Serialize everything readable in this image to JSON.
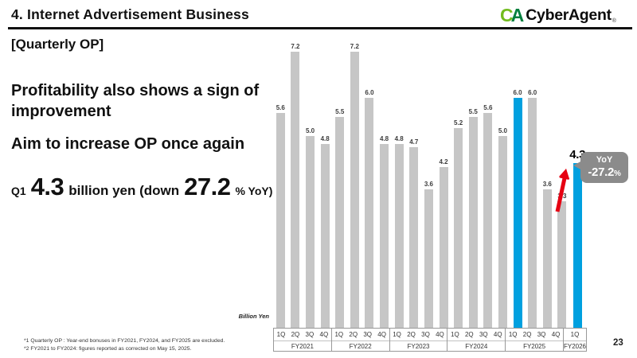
{
  "header": {
    "title": "4.  Internet Advertisement Business",
    "logo": {
      "mark_c": "C",
      "mark_a": "A",
      "name": "CyberAgent",
      "registered": "®"
    }
  },
  "left": {
    "section_label": "[Quarterly OP]",
    "message_line1": "Profitability also shows a sign of improvement",
    "message_line2": "Aim to increase OP once again",
    "kpi": {
      "prefix": "Q1",
      "value": "4.3",
      "mid": "billion yen (down",
      "pct": "27.2",
      "suffix": "% YoY)"
    }
  },
  "chart": {
    "unit_label": "Billion Yen"
  },
  "callout": {
    "line1": "YoY",
    "value": "-27.2",
    "pct_sign": "%"
  },
  "footnotes": [
    "*1  Quarterly OP : Year-end bonuses in FY2021, FY2024, and FY2025 are excluded.",
    "*2  FY2021 to FY2024: figures reported as corrected on May 15, 2025."
  ],
  "page_number": "23",
  "chart_data": {
    "type": "bar",
    "title": "[Quarterly OP]",
    "ylabel": "Billion Yen",
    "ylim": [
      0,
      7.5
    ],
    "grid": false,
    "bar_color": "#c6c6c6",
    "highlight_color": "#00a0df",
    "groups": [
      {
        "fy": "FY2021",
        "quarters": [
          "1Q",
          "2Q",
          "3Q",
          "4Q"
        ],
        "values": [
          5.6,
          7.2,
          5.0,
          4.8
        ]
      },
      {
        "fy": "FY2022",
        "quarters": [
          "1Q",
          "2Q",
          "3Q",
          "4Q"
        ],
        "values": [
          5.5,
          7.2,
          6.0,
          4.8
        ]
      },
      {
        "fy": "FY2023",
        "quarters": [
          "1Q",
          "2Q",
          "3Q",
          "4Q"
        ],
        "values": [
          4.8,
          4.7,
          3.6,
          4.2
        ]
      },
      {
        "fy": "FY2024",
        "quarters": [
          "1Q",
          "2Q",
          "3Q",
          "4Q"
        ],
        "values": [
          5.2,
          5.5,
          5.6,
          5.0
        ]
      },
      {
        "fy": "FY2025",
        "quarters": [
          "1Q",
          "2Q",
          "3Q",
          "4Q"
        ],
        "values": [
          6.0,
          6.0,
          3.6,
          3.3
        ]
      },
      {
        "fy": "FY2026",
        "quarters": [
          "1Q"
        ],
        "values": [
          4.3
        ]
      }
    ],
    "highlighted": [
      {
        "fy": "FY2025",
        "q": "1Q"
      },
      {
        "fy": "FY2026",
        "q": "1Q"
      }
    ],
    "emphasized": [
      {
        "fy": "FY2026",
        "q": "1Q"
      }
    ],
    "annotations": {
      "yoy_change": "-27.2%",
      "arrow": "red arrow from FY2025 4Q up to FY2026 1Q bar"
    }
  }
}
